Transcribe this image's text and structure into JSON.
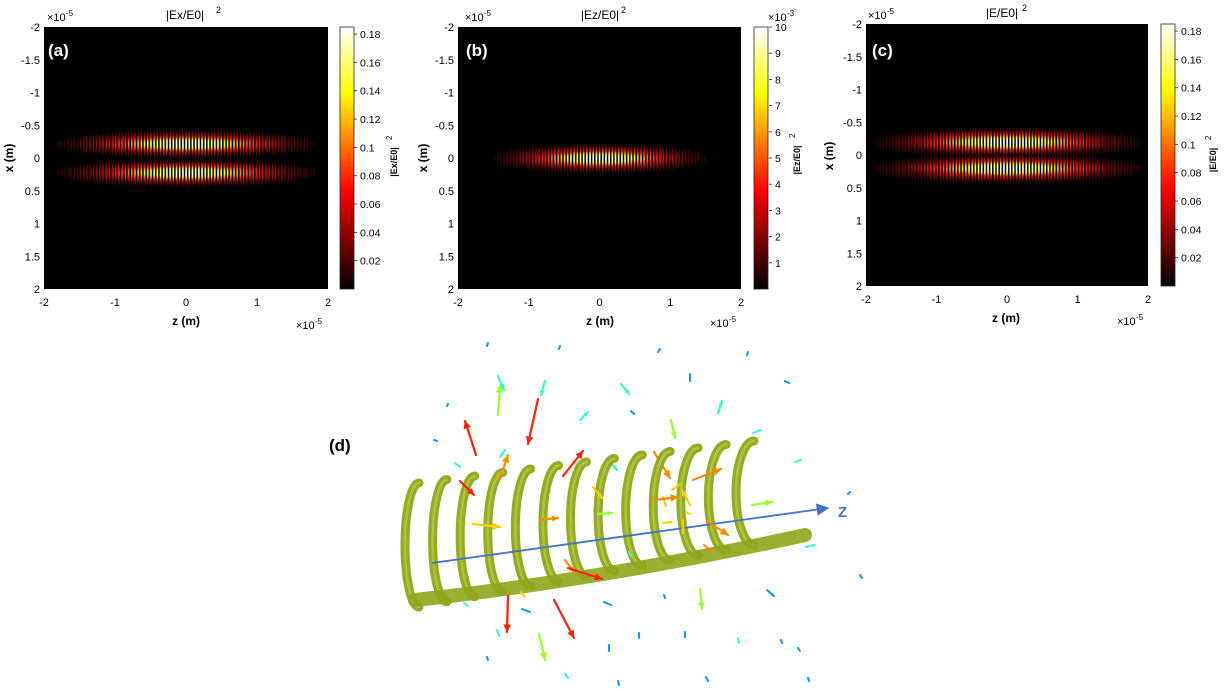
{
  "chart_data": [
    {
      "type": "heatmap",
      "panel_label": "(a)",
      "title": "|Ex/E0|",
      "title_power": "2",
      "xlabel": "z (m)",
      "ylabel": "x (m)",
      "x_ticks": [
        "-2",
        "-1",
        "0",
        "1",
        "2"
      ],
      "x_multiplier": "×10",
      "x_multiplier_power": "-5",
      "y_ticks": [
        "-2",
        "-1.5",
        "-1",
        "-0.5",
        "0",
        "0.5",
        "1",
        "1.5",
        "2"
      ],
      "y_multiplier": "×10",
      "y_multiplier_power": "-5",
      "xlim": [
        -2,
        2
      ],
      "ylim": [
        -2,
        2
      ],
      "colorbar_label": "|Ex/E0|",
      "colorbar_power": "2",
      "colorbar_ticks": [
        "0.02",
        "0.04",
        "0.06",
        "0.08",
        "0.1",
        "0.12",
        "0.14",
        "0.16",
        "0.18"
      ],
      "colorbar_multiplier": "",
      "colorbar_multiplier_power": "",
      "clim": [
        0,
        0.185
      ],
      "pattern": {
        "lobes": [
          -0.22,
          0.22
        ],
        "lobe_width": 0.085,
        "z_width": 0.75,
        "fringe_period": 0.045,
        "peak": 0.185
      }
    },
    {
      "type": "heatmap",
      "panel_label": "(b)",
      "title": "|Ez/E0|",
      "title_power": "2",
      "xlabel": "z (m)",
      "ylabel": "x (m)",
      "x_ticks": [
        "-2",
        "-1",
        "0",
        "1",
        "2"
      ],
      "x_multiplier": "×10",
      "x_multiplier_power": "-5",
      "y_ticks": [
        "-2",
        "-1.5",
        "-1",
        "-0.5",
        "0",
        "0.5",
        "1",
        "1.5",
        "2"
      ],
      "y_multiplier": "×10",
      "y_multiplier_power": "-5",
      "xlim": [
        -2,
        2
      ],
      "ylim": [
        -2,
        2
      ],
      "colorbar_label": "|Ez/E0|",
      "colorbar_power": "2",
      "colorbar_ticks": [
        "1",
        "2",
        "3",
        "4",
        "5",
        "6",
        "7",
        "8",
        "9",
        "10"
      ],
      "colorbar_multiplier": "×10",
      "colorbar_multiplier_power": "-3",
      "clim": [
        0,
        10
      ],
      "pattern": {
        "lobes": [
          0
        ],
        "lobe_width": 0.09,
        "z_width": 0.62,
        "fringe_period": 0.045,
        "peak": 10
      }
    },
    {
      "type": "heatmap",
      "panel_label": "(c)",
      "title": "|E/E0|",
      "title_power": "2",
      "xlabel": "z (m)",
      "ylabel": "x (m)",
      "x_ticks": [
        "-2",
        "-1",
        "0",
        "1",
        "2"
      ],
      "x_multiplier": "×10",
      "x_multiplier_power": "-5",
      "y_ticks": [
        "-2",
        "-1.5",
        "-1",
        "-0.5",
        "0",
        "0.5",
        "1",
        "1.5",
        "2"
      ],
      "y_multiplier": "×10",
      "y_multiplier_power": "-5",
      "xlim": [
        -2,
        2
      ],
      "ylim": [
        -2,
        2
      ],
      "colorbar_label": "|E/E0|",
      "colorbar_power": "2",
      "colorbar_ticks": [
        "0.02",
        "0.04",
        "0.06",
        "0.08",
        "0.1",
        "0.12",
        "0.14",
        "0.16",
        "0.18"
      ],
      "colorbar_multiplier": "",
      "colorbar_multiplier_power": "",
      "clim": [
        0,
        0.185
      ],
      "pattern": {
        "lobes": [
          -0.2,
          0.2
        ],
        "lobe_width": 0.09,
        "z_width": 0.78,
        "fringe_period": 0.045,
        "peak": 0.185
      }
    }
  ],
  "panel_d": {
    "label": "(d)",
    "axis_label": "Z",
    "surface_color": "#8fa61c",
    "axis_color": "#4472c4",
    "arrow_colors": [
      "#ff2200",
      "#ff8800",
      "#ffcc00",
      "#99ff33",
      "#33ffcc",
      "#0099ff"
    ]
  }
}
